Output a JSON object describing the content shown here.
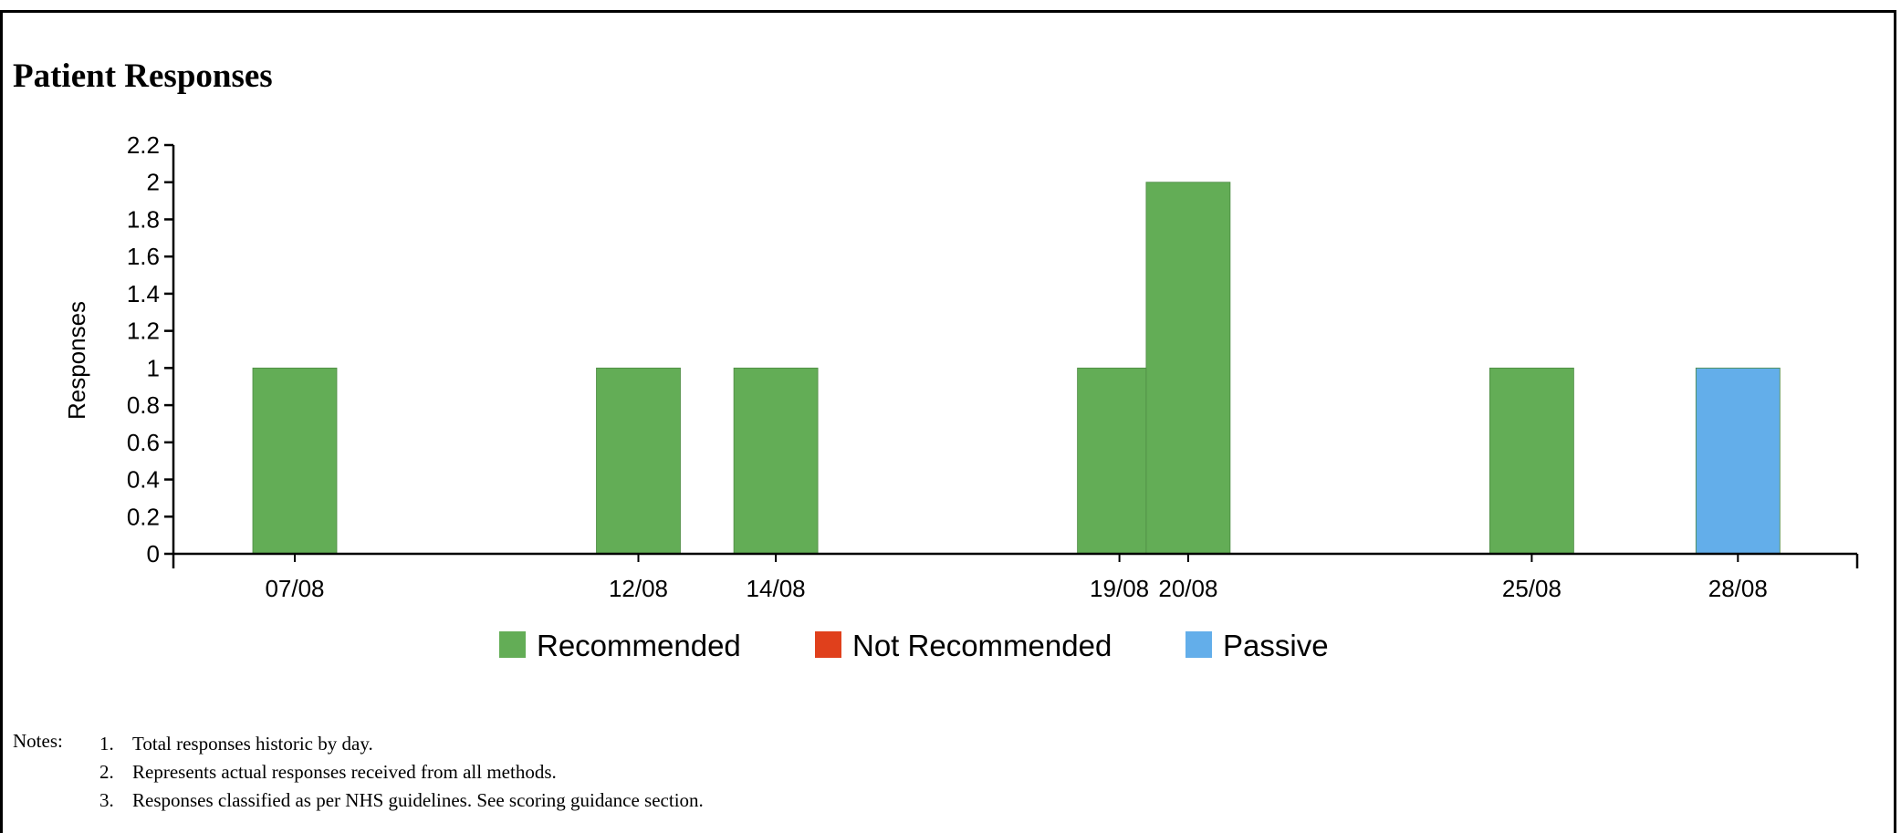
{
  "title": "Patient Responses",
  "chart_data": {
    "type": "bar",
    "title": "Patient Responses",
    "xlabel": "",
    "ylabel": "Responses",
    "ylim": [
      0,
      2.2
    ],
    "yticks": [
      0,
      0.2,
      0.4,
      0.6,
      0.8,
      1,
      1.2,
      1.4,
      1.6,
      1.8,
      2,
      2.2
    ],
    "grid": false,
    "legend_position": "bottom",
    "categories": [
      "07/08",
      "12/08",
      "14/08",
      "19/08",
      "20/08",
      "25/08",
      "28/08"
    ],
    "day_of_month": [
      7,
      12,
      14,
      19,
      20,
      25,
      28
    ],
    "series": [
      {
        "name": "Recommended",
        "color": "#63ad56",
        "values": [
          1,
          1,
          1,
          1,
          2,
          1,
          0
        ]
      },
      {
        "name": "Not Recommended",
        "color": "#e0401c",
        "values": [
          0,
          0,
          0,
          0,
          0,
          0,
          0
        ]
      },
      {
        "name": "Passive",
        "color": "#63aeea",
        "values": [
          0,
          0,
          0,
          0,
          0,
          0,
          1
        ]
      }
    ]
  },
  "notes": {
    "label": "Notes:",
    "items": [
      {
        "num": "1.",
        "text": "Total responses historic by day."
      },
      {
        "num": "2.",
        "text": "Represents actual responses received from all methods."
      },
      {
        "num": "3.",
        "text": "Responses classified as per NHS guidelines. See scoring guidance section."
      }
    ]
  }
}
